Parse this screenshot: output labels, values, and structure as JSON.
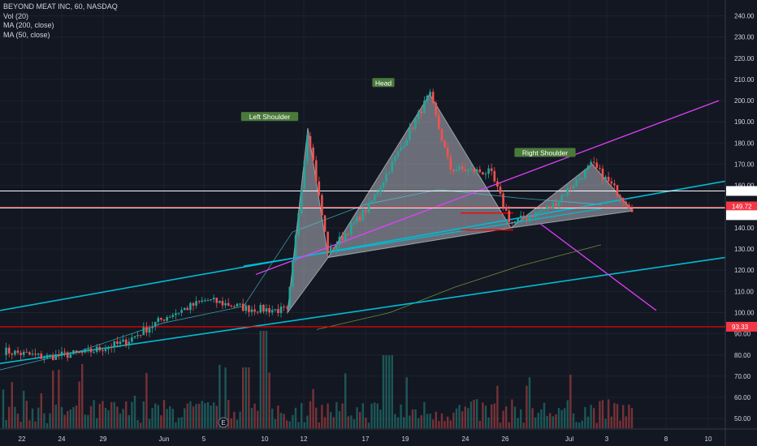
{
  "legend": {
    "symbol": "BEYOND MEAT INC, 60, NASDAQ",
    "vol": "Vol (20)",
    "ma200": "MA (200, close)",
    "ma50": "MA (50, close)"
  },
  "chart_data": {
    "type": "candlestick",
    "symbol": "BEYOND MEAT INC",
    "interval": "60",
    "exchange": "NASDAQ",
    "ylim": [
      45,
      245
    ],
    "y_ticks": [
      50,
      60,
      70,
      80,
      90,
      100,
      110,
      120,
      130,
      140,
      150,
      160,
      170,
      180,
      190,
      200,
      210,
      220,
      230,
      240
    ],
    "x_labels": [
      "22",
      "24",
      "29",
      "Jun",
      "5",
      "10",
      "12",
      "17",
      "19",
      "24",
      "26",
      "Jul",
      "3",
      "8",
      "10"
    ],
    "price_labels": [
      {
        "value": 157.39,
        "text": "157.39",
        "color": "#ffffff"
      },
      {
        "value": 149.72,
        "text": "149.72",
        "color": "#f23645"
      },
      {
        "value": 149.41,
        "text": "149.41",
        "color": "#ffffff"
      },
      {
        "value": 93.33,
        "text": "93.33",
        "color": "#f23645"
      }
    ],
    "annotations": [
      {
        "text": "Left Shoulder",
        "at": "10 Jun peak",
        "price": 187
      },
      {
        "text": "Head",
        "at": "18 Jun peak",
        "price": 203
      },
      {
        "text": "Right Shoulder",
        "at": "late Jun peak",
        "price": 170
      }
    ],
    "pattern_points": [
      {
        "date": "Jun 9",
        "price": 100
      },
      {
        "date": "Jun 10",
        "price": 187
      },
      {
        "date": "Jun 11",
        "price": 126
      },
      {
        "date": "Jun 18",
        "price": 203
      },
      {
        "date": "Jun 24",
        "price": 140
      },
      {
        "date": "Jun 28",
        "price": 170
      },
      {
        "date": "Jul 2",
        "price": 148
      }
    ],
    "price_path": [
      {
        "date": "May 20",
        "price": 82
      },
      {
        "date": "May 22",
        "price": 79
      },
      {
        "date": "May 24",
        "price": 81
      },
      {
        "date": "May 28",
        "price": 86
      },
      {
        "date": "May 30",
        "price": 98
      },
      {
        "date": "Jun 3",
        "price": 106
      },
      {
        "date": "Jun 5",
        "price": 102
      },
      {
        "date": "Jun 7",
        "price": 101
      },
      {
        "date": "Jun 10",
        "price": 187
      },
      {
        "date": "Jun 11",
        "price": 128
      },
      {
        "date": "Jun 13",
        "price": 150
      },
      {
        "date": "Jun 18",
        "price": 203
      },
      {
        "date": "Jun 19",
        "price": 168
      },
      {
        "date": "Jun 21",
        "price": 166
      },
      {
        "date": "Jun 24",
        "price": 142
      },
      {
        "date": "Jun 26",
        "price": 150
      },
      {
        "date": "Jun 28",
        "price": 170
      },
      {
        "date": "Jul 2",
        "price": 149
      }
    ],
    "moving_averages": [
      {
        "name": "MA (200, close)",
        "color": "#8bc34a"
      },
      {
        "name": "MA (50, close)",
        "color": "#4dd0e1"
      }
    ],
    "volume": {
      "shown": true,
      "ylabel": "Vol (20)"
    },
    "colors": {
      "up": "#26a69a",
      "down": "#ef5350",
      "trend": "#00bcd4",
      "channel": "#e040fb",
      "support": "#ff0000"
    },
    "grid": true,
    "marker": "E"
  }
}
